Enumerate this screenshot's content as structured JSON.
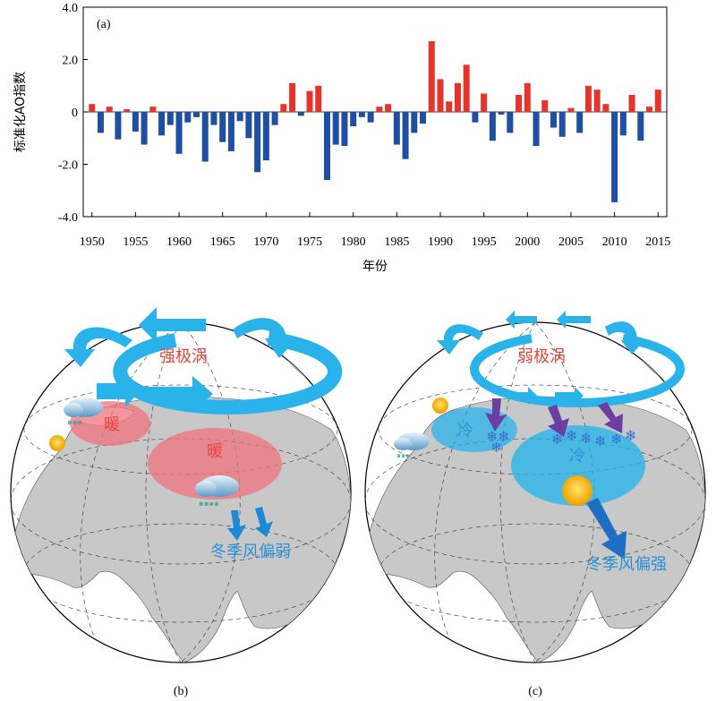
{
  "panel_a": {
    "label": "(a)",
    "ylabel": "标准化AO指数",
    "xlabel": "年份",
    "yticks": [
      "4.0",
      "2.0",
      "0",
      "-2.0",
      "-4.0"
    ],
    "xticks": [
      "1950",
      "1955",
      "1960",
      "1965",
      "1970",
      "1975",
      "1980",
      "1985",
      "1990",
      "1995",
      "2000",
      "2005",
      "2010",
      "2015"
    ]
  },
  "chart_data": {
    "type": "bar",
    "title": "",
    "xlabel": "年份",
    "ylabel": "标准化AO指数",
    "ylim": [
      -4.0,
      4.0
    ],
    "xlim": [
      1949,
      2016
    ],
    "positive_color": "#e8332a",
    "negative_color": "#1f4fa3",
    "years": [
      1950,
      1951,
      1952,
      1953,
      1954,
      1955,
      1956,
      1957,
      1958,
      1959,
      1960,
      1961,
      1962,
      1963,
      1964,
      1965,
      1966,
      1967,
      1968,
      1969,
      1970,
      1971,
      1972,
      1973,
      1974,
      1975,
      1976,
      1977,
      1978,
      1979,
      1980,
      1981,
      1982,
      1983,
      1984,
      1985,
      1986,
      1987,
      1988,
      1989,
      1990,
      1991,
      1992,
      1993,
      1994,
      1995,
      1996,
      1997,
      1998,
      1999,
      2000,
      2001,
      2002,
      2003,
      2004,
      2005,
      2006,
      2007,
      2008,
      2009,
      2010,
      2011,
      2012,
      2013,
      2014,
      2015
    ],
    "values": [
      0.3,
      -0.8,
      0.2,
      -1.05,
      0.1,
      -0.75,
      -1.25,
      0.2,
      -0.9,
      -0.5,
      -1.6,
      -0.4,
      -0.2,
      -1.9,
      -0.5,
      -1.15,
      -1.5,
      -0.35,
      -1.0,
      -2.3,
      -1.85,
      -0.5,
      0.3,
      1.1,
      -0.15,
      0.8,
      1.0,
      -2.6,
      -1.25,
      -1.3,
      -0.55,
      -0.2,
      -0.4,
      0.2,
      0.3,
      -1.25,
      -1.8,
      -0.8,
      -0.45,
      2.7,
      1.25,
      0.4,
      1.1,
      1.8,
      -0.4,
      0.7,
      -1.1,
      -0.1,
      -0.8,
      0.65,
      1.1,
      -1.3,
      0.45,
      -0.6,
      -0.95,
      0.15,
      -0.8,
      1.0,
      0.85,
      0.3,
      -3.45,
      -0.9,
      0.65,
      -1.1,
      0.2,
      0.85
    ]
  },
  "panel_b": {
    "label": "(b)",
    "vortex_label": "强极涡",
    "warm_small": "暖",
    "warm_large": "暖",
    "monsoon_label": "冬季风偏弱"
  },
  "panel_c": {
    "label": "(c)",
    "vortex_label": "弱极涡",
    "cold_small": "冷",
    "cold_large": "冷",
    "monsoon_label": "冬季风偏强"
  },
  "colors": {
    "arrow_cyan": "#29b3ea",
    "warm_fill": "#f0737c",
    "cold_fill": "#1fb4ec",
    "purple_arrow": "#6a3fa0",
    "land": "#c8c8c8",
    "sea": "#ffffff"
  }
}
